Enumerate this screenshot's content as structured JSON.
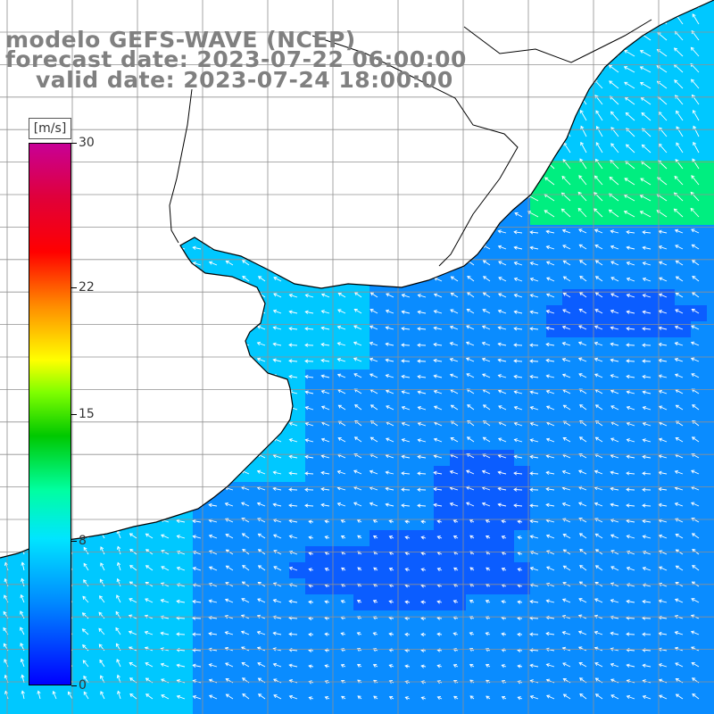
{
  "header": {
    "line1": "modelo GEFS-WAVE (NCEP)",
    "line2": "forecast date: 2023-07-22 06:00:00",
    "line3": "valid date: 2023-07-24 18:00:00"
  },
  "colorbar": {
    "units": "[m/s]",
    "ticks": [
      "30",
      "22",
      "15",
      "8",
      "0"
    ],
    "tick_values": [
      30,
      22,
      15,
      8,
      0
    ],
    "range": [
      0,
      30
    ]
  },
  "map": {
    "field": "wind speed with direction arrows",
    "grid_lines": true,
    "colors": {
      "ocean_main": "#0a8cff",
      "ocean_low": "#0b5dff",
      "coastal": "#00c8ff",
      "north_high": "#00ee80",
      "land": "#ffffff",
      "grid": "#909090",
      "coastline": "#000000",
      "arrows": "#ffffff"
    }
  }
}
